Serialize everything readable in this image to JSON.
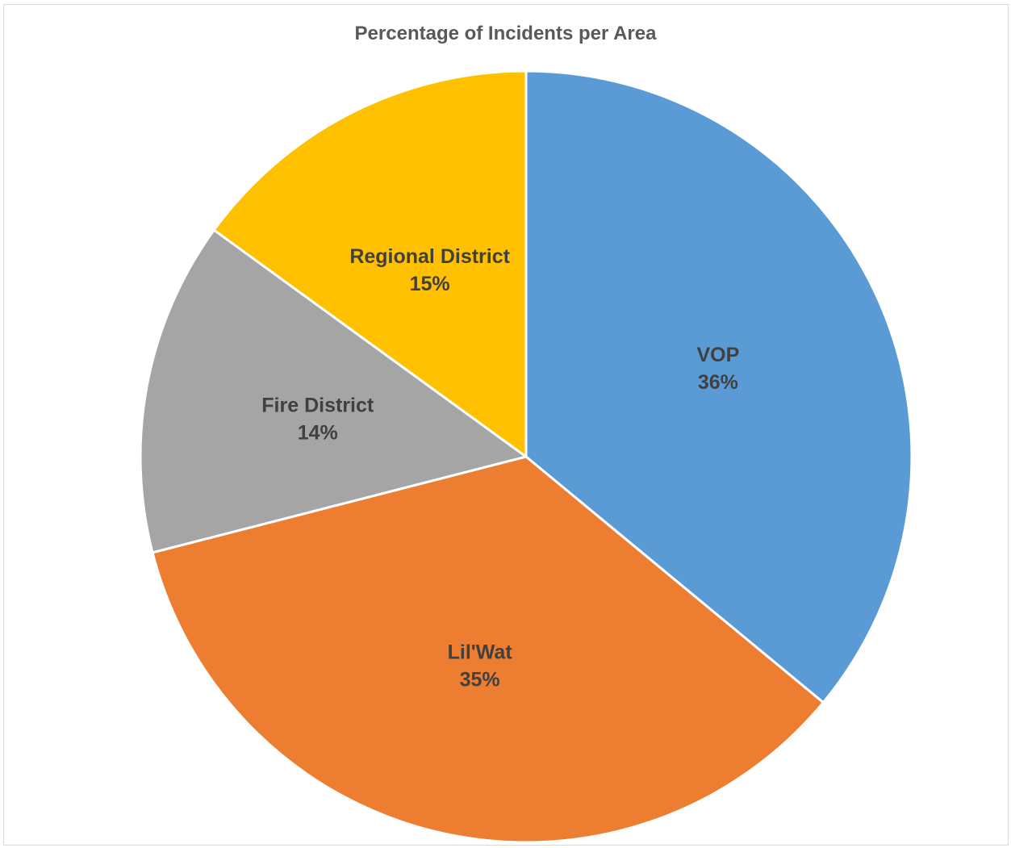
{
  "chart_data": {
    "type": "pie",
    "title": "Percentage of Incidents per Area",
    "categories": [
      "VOP",
      "Lil'Wat",
      "Fire District",
      "Regional District"
    ],
    "values": [
      36,
      35,
      14,
      15
    ],
    "data_labels": [
      "36%",
      "35%",
      "14%",
      "15%"
    ],
    "colors": [
      "#5b9bd5",
      "#ed7d31",
      "#a5a5a5",
      "#ffc000"
    ],
    "start_angle_deg": 0,
    "direction": "clockwise",
    "legend": "none"
  }
}
